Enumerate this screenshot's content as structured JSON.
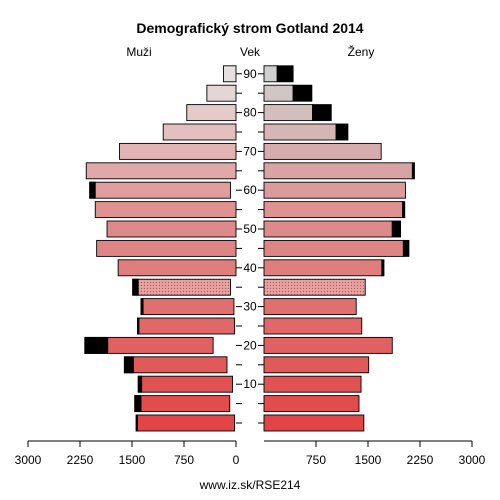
{
  "chart_data": {
    "type": "bar",
    "orientation": "horizontal-population-pyramid",
    "title": "Demografický strom Gotland 2014",
    "left_label": "Muži",
    "center_label": "Vek",
    "right_label": "Ženy",
    "footer": "www.iz.sk/RSE214",
    "age_groups": [
      "0-4",
      "5-9",
      "10-14",
      "15-19",
      "20-24",
      "25-29",
      "30-34",
      "35-39",
      "40-44",
      "45-49",
      "50-54",
      "55-59",
      "60-64",
      "65-69",
      "70-74",
      "75-79",
      "80-84",
      "85-89",
      "90+"
    ],
    "age_tick_labels": [
      "10",
      "20",
      "30",
      "40",
      "50",
      "60",
      "70",
      "80",
      "90"
    ],
    "age_tick_groups": [
      2,
      4,
      6,
      8,
      10,
      12,
      14,
      16,
      18
    ],
    "x_ticks": [
      3000,
      2250,
      1500,
      750,
      0,
      750,
      1500,
      2250,
      3000
    ],
    "xlim": [
      0,
      3000
    ],
    "series": [
      {
        "name": "Muži",
        "total": [
          1440,
          1460,
          1410,
          1610,
          2180,
          1420,
          1370,
          1490,
          1700,
          2010,
          1860,
          2030,
          2110,
          2160,
          1680,
          1050,
          710,
          420,
          180
        ],
        "extra": [
          20,
          90,
          50,
          130,
          330,
          20,
          30,
          80,
          0,
          0,
          0,
          0,
          80,
          0,
          0,
          0,
          0,
          0,
          0
        ]
      },
      {
        "name": "Ženy",
        "total": [
          1440,
          1370,
          1400,
          1510,
          1850,
          1410,
          1330,
          1460,
          1730,
          2090,
          1970,
          2030,
          2040,
          2170,
          1690,
          1210,
          970,
          690,
          420
        ],
        "extra": [
          0,
          0,
          0,
          0,
          0,
          0,
          0,
          0,
          30,
          80,
          120,
          30,
          0,
          30,
          0,
          170,
          270,
          270,
          230
        ]
      }
    ],
    "colors": {
      "main_gradient_bottom": "#e14545",
      "main_gradient_mid": "#df9090",
      "main_gradient_top": "#e7e0e0",
      "female_gradient_top": "#cfcfcf",
      "extra": "#000000",
      "dotted_band": "#e59a9a"
    },
    "dotted_group": "35-39"
  }
}
